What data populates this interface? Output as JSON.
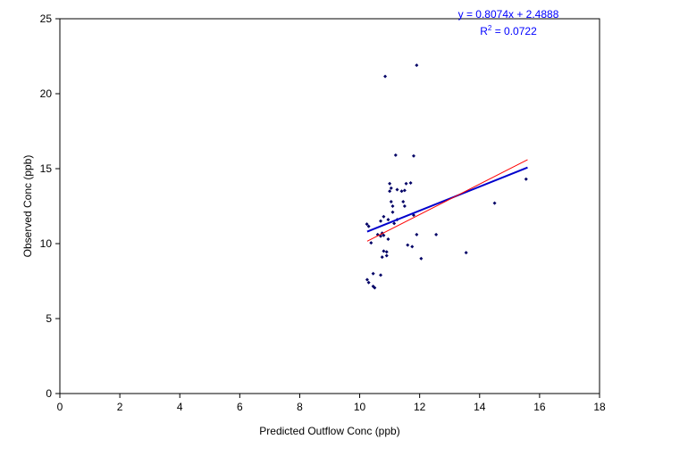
{
  "chart_data": {
    "type": "scatter",
    "title": "",
    "xlabel": "Predicted Outflow Conc (ppb)",
    "ylabel": "Observed Conc (ppb)",
    "xlim": [
      0,
      18
    ],
    "ylim": [
      0,
      25
    ],
    "x_ticks": [
      "0",
      "2",
      "4",
      "6",
      "8",
      "10",
      "12",
      "14",
      "16",
      "18"
    ],
    "y_ticks": [
      "0",
      "5",
      "10",
      "15",
      "20",
      "25"
    ],
    "grid": false,
    "legend": "none",
    "point_color": "#000066",
    "annotation": {
      "equation": "y = 0.8074x + 2.4888",
      "r2_prefix": "R",
      "r2_sup": "2",
      "r2_suffix": " = 0.0722",
      "color": "#0000ff"
    },
    "lines": [
      {
        "x": [
          10.25,
          15.6
        ],
        "y": [
          10.8,
          15.08
        ],
        "color": "#0000cc"
      },
      {
        "x": [
          10.25,
          15.6
        ],
        "y": [
          10.16,
          15.6
        ],
        "color": "#ff0000"
      }
    ],
    "points": [
      {
        "x": 10.24,
        "y": 11.3
      },
      {
        "x": 10.3,
        "y": 11.15
      },
      {
        "x": 10.38,
        "y": 10.05
      },
      {
        "x": 10.25,
        "y": 7.6
      },
      {
        "x": 10.3,
        "y": 7.4
      },
      {
        "x": 10.45,
        "y": 7.15
      },
      {
        "x": 10.5,
        "y": 7.05
      },
      {
        "x": 10.45,
        "y": 8.0
      },
      {
        "x": 10.7,
        "y": 7.9
      },
      {
        "x": 10.6,
        "y": 10.6
      },
      {
        "x": 10.7,
        "y": 10.5
      },
      {
        "x": 10.75,
        "y": 10.7
      },
      {
        "x": 10.8,
        "y": 10.55
      },
      {
        "x": 10.7,
        "y": 11.5
      },
      {
        "x": 10.8,
        "y": 11.8
      },
      {
        "x": 10.75,
        "y": 9.1
      },
      {
        "x": 10.8,
        "y": 9.5
      },
      {
        "x": 10.9,
        "y": 9.45
      },
      {
        "x": 10.9,
        "y": 9.2
      },
      {
        "x": 10.95,
        "y": 10.3
      },
      {
        "x": 10.95,
        "y": 11.6
      },
      {
        "x": 11.0,
        "y": 14.0
      },
      {
        "x": 11.0,
        "y": 13.5
      },
      {
        "x": 11.05,
        "y": 12.8
      },
      {
        "x": 11.05,
        "y": 13.7
      },
      {
        "x": 11.1,
        "y": 12.5
      },
      {
        "x": 11.1,
        "y": 12.1
      },
      {
        "x": 11.15,
        "y": 11.35
      },
      {
        "x": 11.25,
        "y": 11.6
      },
      {
        "x": 11.2,
        "y": 15.9
      },
      {
        "x": 11.25,
        "y": 13.6
      },
      {
        "x": 11.4,
        "y": 13.5
      },
      {
        "x": 11.5,
        "y": 13.55
      },
      {
        "x": 11.45,
        "y": 12.8
      },
      {
        "x": 11.5,
        "y": 12.5
      },
      {
        "x": 11.55,
        "y": 14.0
      },
      {
        "x": 11.7,
        "y": 14.05
      },
      {
        "x": 11.6,
        "y": 9.9
      },
      {
        "x": 11.75,
        "y": 9.8
      },
      {
        "x": 11.8,
        "y": 11.9
      },
      {
        "x": 11.8,
        "y": 15.85
      },
      {
        "x": 11.9,
        "y": 10.6
      },
      {
        "x": 10.85,
        "y": 21.15
      },
      {
        "x": 11.9,
        "y": 21.9
      },
      {
        "x": 12.05,
        "y": 9.0
      },
      {
        "x": 12.55,
        "y": 10.6
      },
      {
        "x": 13.55,
        "y": 9.4
      },
      {
        "x": 14.5,
        "y": 12.7
      },
      {
        "x": 15.55,
        "y": 14.3
      }
    ]
  }
}
